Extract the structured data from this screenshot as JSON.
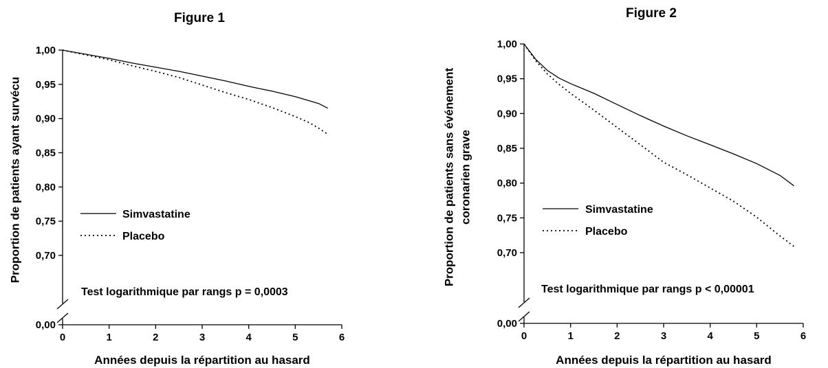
{
  "chart_data": [
    {
      "type": "line",
      "title": "Figure 1",
      "xlabel": "Années depuis la répartition au hasard",
      "ylabel": [
        "Proportion de patients ayant survécu"
      ],
      "xlim": [
        0,
        6
      ],
      "xticks": [
        0,
        1,
        2,
        3,
        4,
        5,
        6
      ],
      "xtick_labels": [
        "0",
        "1",
        "2",
        "3",
        "4",
        "5",
        "6"
      ],
      "ylim": [
        0.65,
        1.0
      ],
      "axis_break": true,
      "yticks": [
        0.0,
        0.7,
        0.75,
        0.8,
        0.85,
        0.9,
        0.95,
        1.0
      ],
      "ytick_labels": [
        "0,00",
        "0,70",
        "0,75",
        "0,80",
        "0,85",
        "0,90",
        "0,95",
        "1,00"
      ],
      "legend_position": "center-left",
      "annotation": "Test logarithmique par rangs  p = 0,0003",
      "series": [
        {
          "name": "Simvastatine",
          "style": "solid",
          "x": [
            0,
            0.5,
            1,
            1.5,
            2,
            2.5,
            3,
            3.5,
            4,
            4.5,
            5,
            5.3,
            5.5,
            5.7
          ],
          "y": [
            1.0,
            0.994,
            0.988,
            0.981,
            0.975,
            0.969,
            0.962,
            0.955,
            0.947,
            0.94,
            0.932,
            0.926,
            0.922,
            0.915
          ]
        },
        {
          "name": "Placebo",
          "style": "dotted",
          "x": [
            0,
            0.5,
            1,
            1.5,
            2,
            2.5,
            3,
            3.5,
            4,
            4.5,
            5,
            5.3,
            5.5,
            5.7
          ],
          "y": [
            1.0,
            0.993,
            0.986,
            0.977,
            0.969,
            0.96,
            0.949,
            0.938,
            0.928,
            0.916,
            0.903,
            0.894,
            0.886,
            0.877
          ]
        }
      ]
    },
    {
      "type": "line",
      "title": "Figure 2",
      "xlabel": "Années depuis la répartition au hasard",
      "ylabel": [
        "Proportion de patients sans événement",
        "coronarien grave"
      ],
      "xlim": [
        0,
        6
      ],
      "xticks": [
        0,
        1,
        2,
        3,
        4,
        5,
        6
      ],
      "xtick_labels": [
        "0",
        "1",
        "2",
        "3",
        "4",
        "5",
        "6"
      ],
      "ylim": [
        0.65,
        1.0
      ],
      "axis_break": true,
      "yticks": [
        0.0,
        0.7,
        0.75,
        0.8,
        0.85,
        0.9,
        0.95,
        1.0
      ],
      "ytick_labels": [
        "0,00",
        "0,70",
        "0,75",
        "0,80",
        "0,85",
        "0,90",
        "0,95",
        "1,00"
      ],
      "legend_position": "center-left",
      "annotation": "Test logarithmique par rangs  p < 0,00001",
      "series": [
        {
          "name": "Simvastatine",
          "style": "solid",
          "x": [
            0,
            0.25,
            0.5,
            0.75,
            1,
            1.5,
            2,
            2.5,
            3,
            3.5,
            4,
            4.5,
            5,
            5.5,
            5.8
          ],
          "y": [
            1.0,
            0.978,
            0.962,
            0.951,
            0.943,
            0.929,
            0.913,
            0.897,
            0.882,
            0.868,
            0.855,
            0.842,
            0.828,
            0.811,
            0.796
          ]
        },
        {
          "name": "Placebo",
          "style": "dotted",
          "x": [
            0,
            0.25,
            0.5,
            0.75,
            1,
            1.5,
            2,
            2.5,
            3,
            3.5,
            4,
            4.5,
            5,
            5.5,
            5.8
          ],
          "y": [
            1.0,
            0.976,
            0.957,
            0.942,
            0.929,
            0.905,
            0.88,
            0.855,
            0.83,
            0.812,
            0.793,
            0.774,
            0.751,
            0.724,
            0.709
          ]
        }
      ]
    }
  ]
}
